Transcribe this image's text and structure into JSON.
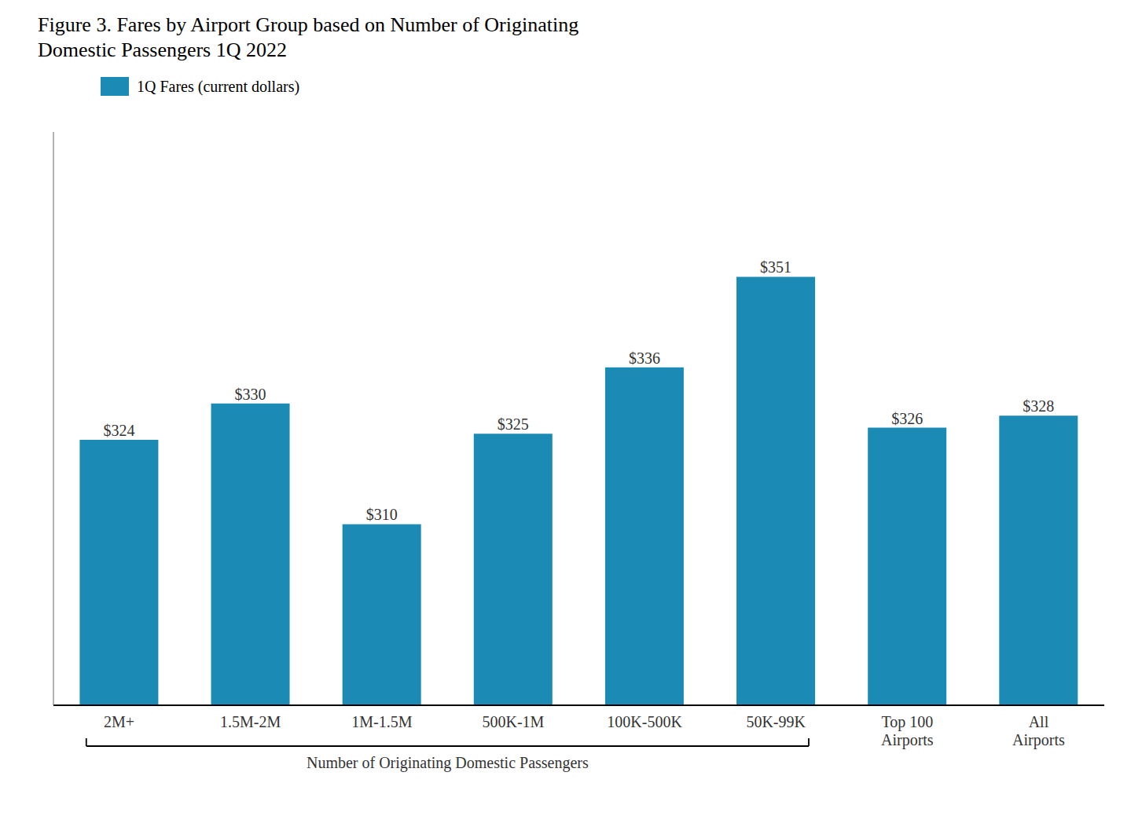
{
  "chart_data": {
    "type": "bar",
    "title": "Figure 3. Fares by Airport Group based on Number of Originating\nDomestic Passengers 1Q 2022",
    "categories": [
      "2M+",
      "1.5M-2M",
      "1M-1.5M",
      "500K-1M",
      "100K-500K",
      "50K-99K",
      "Top 100\nAirports",
      "All\nAirports"
    ],
    "series": [
      {
        "name": "1Q Fares (current dollars)",
        "color": "#1b8bb5",
        "values": [
          324,
          330,
          310,
          325,
          336,
          351,
          326,
          328
        ],
        "value_labels": [
          "$324",
          "$330",
          "$310",
          "$325",
          "$336",
          "$351",
          "$326",
          "$328"
        ]
      }
    ],
    "ylim": [
      280,
      375
    ],
    "data_labels": true,
    "tick_labels": "x",
    "grid": false,
    "legend": "upper left",
    "annotations": [
      {
        "text": "Number of Originating Domestic Passengers",
        "from": "2M+",
        "to": "50K-99K"
      }
    ]
  }
}
